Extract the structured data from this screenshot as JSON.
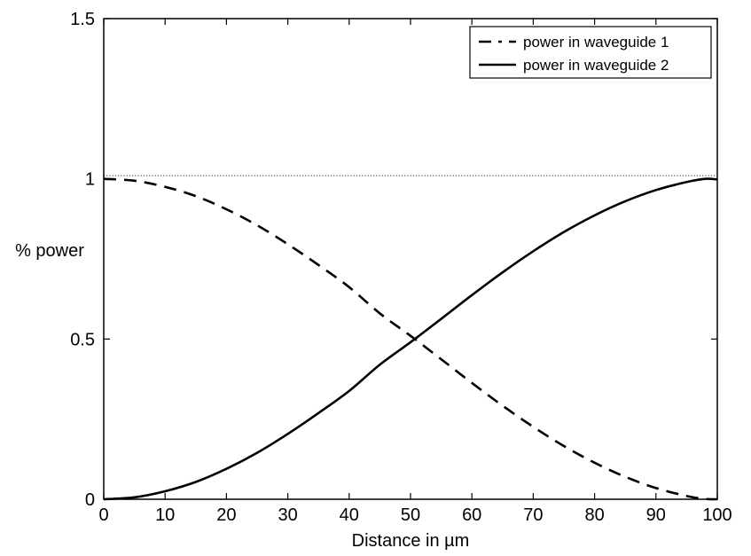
{
  "chart_data": {
    "type": "line",
    "xlabel": "Distance in µm",
    "ylabel": "% power",
    "xlim": [
      0,
      100
    ],
    "ylim": [
      0,
      1.5
    ],
    "xticks": [
      "0",
      "10",
      "20",
      "30",
      "40",
      "50",
      "60",
      "70",
      "80",
      "90",
      "100"
    ],
    "yticks": [
      "0",
      "0.5",
      "1",
      "1.5"
    ],
    "grid": false,
    "legend_position": "top-right",
    "reference_line": {
      "y": 1.01,
      "style": "dotted"
    },
    "x": [
      0,
      5,
      10,
      15,
      20,
      25,
      30,
      35,
      40,
      45,
      50,
      55,
      60,
      65,
      70,
      75,
      80,
      85,
      90,
      95,
      98,
      100
    ],
    "series": [
      {
        "name": "power in waveguide 1",
        "line_style": "dashed",
        "values": [
          1.0,
          0.994,
          0.975,
          0.946,
          0.905,
          0.855,
          0.796,
          0.731,
          0.662,
          0.58,
          0.51,
          0.437,
          0.363,
          0.292,
          0.226,
          0.166,
          0.114,
          0.07,
          0.035,
          0.01,
          0.001,
          0.0
        ]
      },
      {
        "name": "power in waveguide 2",
        "line_style": "solid",
        "values": [
          0.0,
          0.006,
          0.025,
          0.054,
          0.095,
          0.145,
          0.204,
          0.269,
          0.338,
          0.42,
          0.49,
          0.563,
          0.637,
          0.708,
          0.774,
          0.834,
          0.886,
          0.93,
          0.965,
          0.99,
          1.0,
          0.998
        ]
      }
    ]
  }
}
